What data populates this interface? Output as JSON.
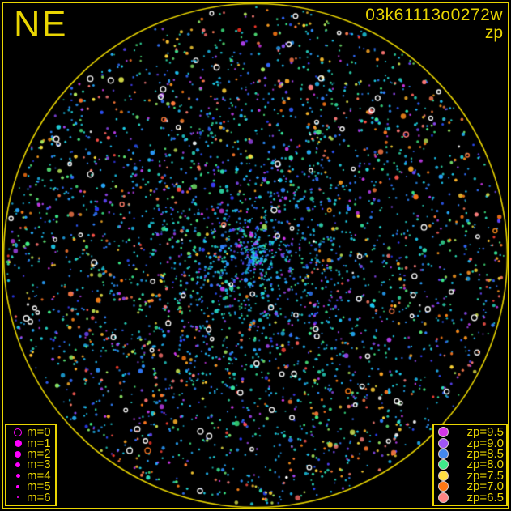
{
  "accent_color": "#e9d502",
  "background_color": "#000000",
  "header": {
    "corner_label": "NE",
    "title": "03k61113o0272w",
    "subtitle": "zp"
  },
  "m_legend": {
    "marker_color": "#ff00ff",
    "items": [
      {
        "label": "m=0",
        "diameter": 8,
        "open": true
      },
      {
        "label": "m=1",
        "diameter": 9,
        "open": false
      },
      {
        "label": "m=2",
        "diameter": 8,
        "open": false
      },
      {
        "label": "m=3",
        "diameter": 6.5,
        "open": false
      },
      {
        "label": "m=4",
        "diameter": 5,
        "open": false
      },
      {
        "label": "m=5",
        "diameter": 3.5,
        "open": false
      },
      {
        "label": "m=6",
        "diameter": 2.2,
        "open": false
      }
    ]
  },
  "zp_legend": {
    "ring_color": "rgba(255,235,235,0.85)",
    "items": [
      {
        "label": "zp=9.5",
        "color": "#d636ea"
      },
      {
        "label": "zp=9.0",
        "color": "#a055f5"
      },
      {
        "label": "zp=8.5",
        "color": "#4488ee"
      },
      {
        "label": "zp=8.0",
        "color": "#3fe88a"
      },
      {
        "label": "zp=7.5",
        "color": "#ffdf42"
      },
      {
        "label": "zp=7.0",
        "color": "#ff7714"
      },
      {
        "label": "zp=6.5",
        "color": "#ff8484"
      }
    ]
  },
  "chart_data": {
    "type": "scatter",
    "title": "03k61113o0272w",
    "color_variable": "zp",
    "size_variable": "m",
    "field_shape": "circle",
    "orientation_label": "NE",
    "legend_position": [
      "bottom-left",
      "bottom-right"
    ],
    "grid": false,
    "color_scale": {
      "label": "zp",
      "range": [
        6.5,
        9.5
      ],
      "entries": {
        "9.5": "#d636ea",
        "9.0": "#a055f5",
        "8.5": "#4488ee",
        "8.0": "#3fe88a",
        "7.5": "#ffdf42",
        "7.0": "#ff7714",
        "6.5": "#ff8484"
      }
    },
    "size_scale": {
      "label": "m",
      "range": [
        0,
        6
      ],
      "note": "m=0 open circle (largest), m=6 smallest"
    },
    "generation": {
      "seed": 20231,
      "center": [
        315.5,
        315.5
      ],
      "radius": 311,
      "circle_color": "#e9d502",
      "palette_stops": [
        [
          6.2,
          "#ff2a18"
        ],
        [
          6.5,
          "#ff8080"
        ],
        [
          7.0,
          "#ff7712"
        ],
        [
          7.5,
          "#ffdf3a"
        ],
        [
          8.0,
          "#3dee85"
        ],
        [
          8.3,
          "#1accf2"
        ],
        [
          8.55,
          "#3377ff"
        ],
        [
          8.78,
          "#2a3bff"
        ],
        [
          9.05,
          "#8c4cf5"
        ],
        [
          9.55,
          "#d636ea"
        ]
      ],
      "size_weights": [
        [
          1.6,
          0.26
        ],
        [
          2.1,
          0.34
        ],
        [
          2.7,
          0.21
        ],
        [
          3.3,
          0.12
        ],
        [
          4.1,
          0.05
        ],
        [
          5.2,
          0.02
        ]
      ],
      "populations": [
        {
          "name": "faint_core",
          "n": 2600,
          "zp_mean": 8.33,
          "zp_sd": 0.19,
          "zp_clip": [
            7.96,
            8.74
          ],
          "r_exp": 0.85,
          "size_bonus": 0
        },
        {
          "name": "violet",
          "n": 480,
          "zp_min": 8.8,
          "zp_max": 9.55,
          "r_exp": 0.8,
          "size_bonus": 0.2
        },
        {
          "name": "bright_outer",
          "n": 680,
          "zp_min": 6.25,
          "zp_max": 8.05,
          "r_exp": 0.42,
          "size_bonus": 1.0
        },
        {
          "name": "white_open",
          "n": 82,
          "open": true,
          "color": "#ffffff",
          "r_exp": 0.45
        },
        {
          "name": "colored_open",
          "n": 10,
          "open": true,
          "zp_min": 6.3,
          "zp_max": 7.3,
          "r_exp": 0.45
        },
        {
          "name": "white_dot",
          "n": 16,
          "color": "#ffffff",
          "r_exp": 0.5,
          "size_bonus": 0.6
        }
      ]
    }
  }
}
